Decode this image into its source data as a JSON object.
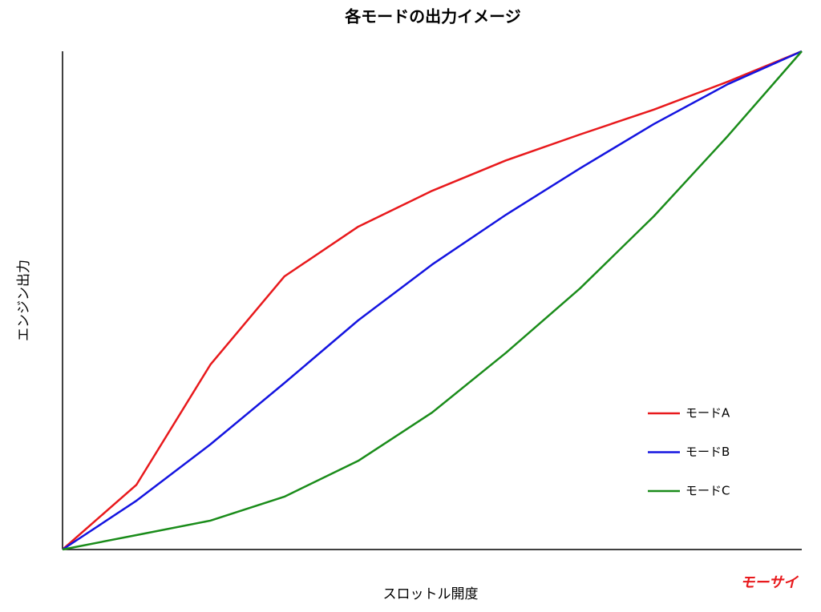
{
  "chart_data": {
    "type": "line",
    "title": "各モードの出力イメージ",
    "x_label": "スロットル開度",
    "y_label": "エンジン出力",
    "x": [
      0,
      10,
      20,
      30,
      40,
      50,
      60,
      70,
      80,
      90,
      100
    ],
    "series": [
      {
        "name": "モードA",
        "color": "#e8191c",
        "values": [
          0,
          13.0,
          37.1,
          54.8,
          64.8,
          72.0,
          78.1,
          83.3,
          88.3,
          93.9,
          100
        ]
      },
      {
        "name": "モードB",
        "color": "#1414e0",
        "values": [
          0,
          9.8,
          21.1,
          33.4,
          46.0,
          57.2,
          67.2,
          76.5,
          85.4,
          93.4,
          100
        ]
      },
      {
        "name": "モードC",
        "color": "#1a8c1a",
        "values": [
          0,
          2.9,
          5.8,
          10.6,
          17.8,
          27.5,
          39.5,
          52.4,
          66.9,
          83.0,
          100
        ]
      }
    ],
    "xlim": [
      0,
      100
    ],
    "ylim": [
      0,
      100
    ],
    "legend": "lower right",
    "watermark": "モーサイ"
  }
}
